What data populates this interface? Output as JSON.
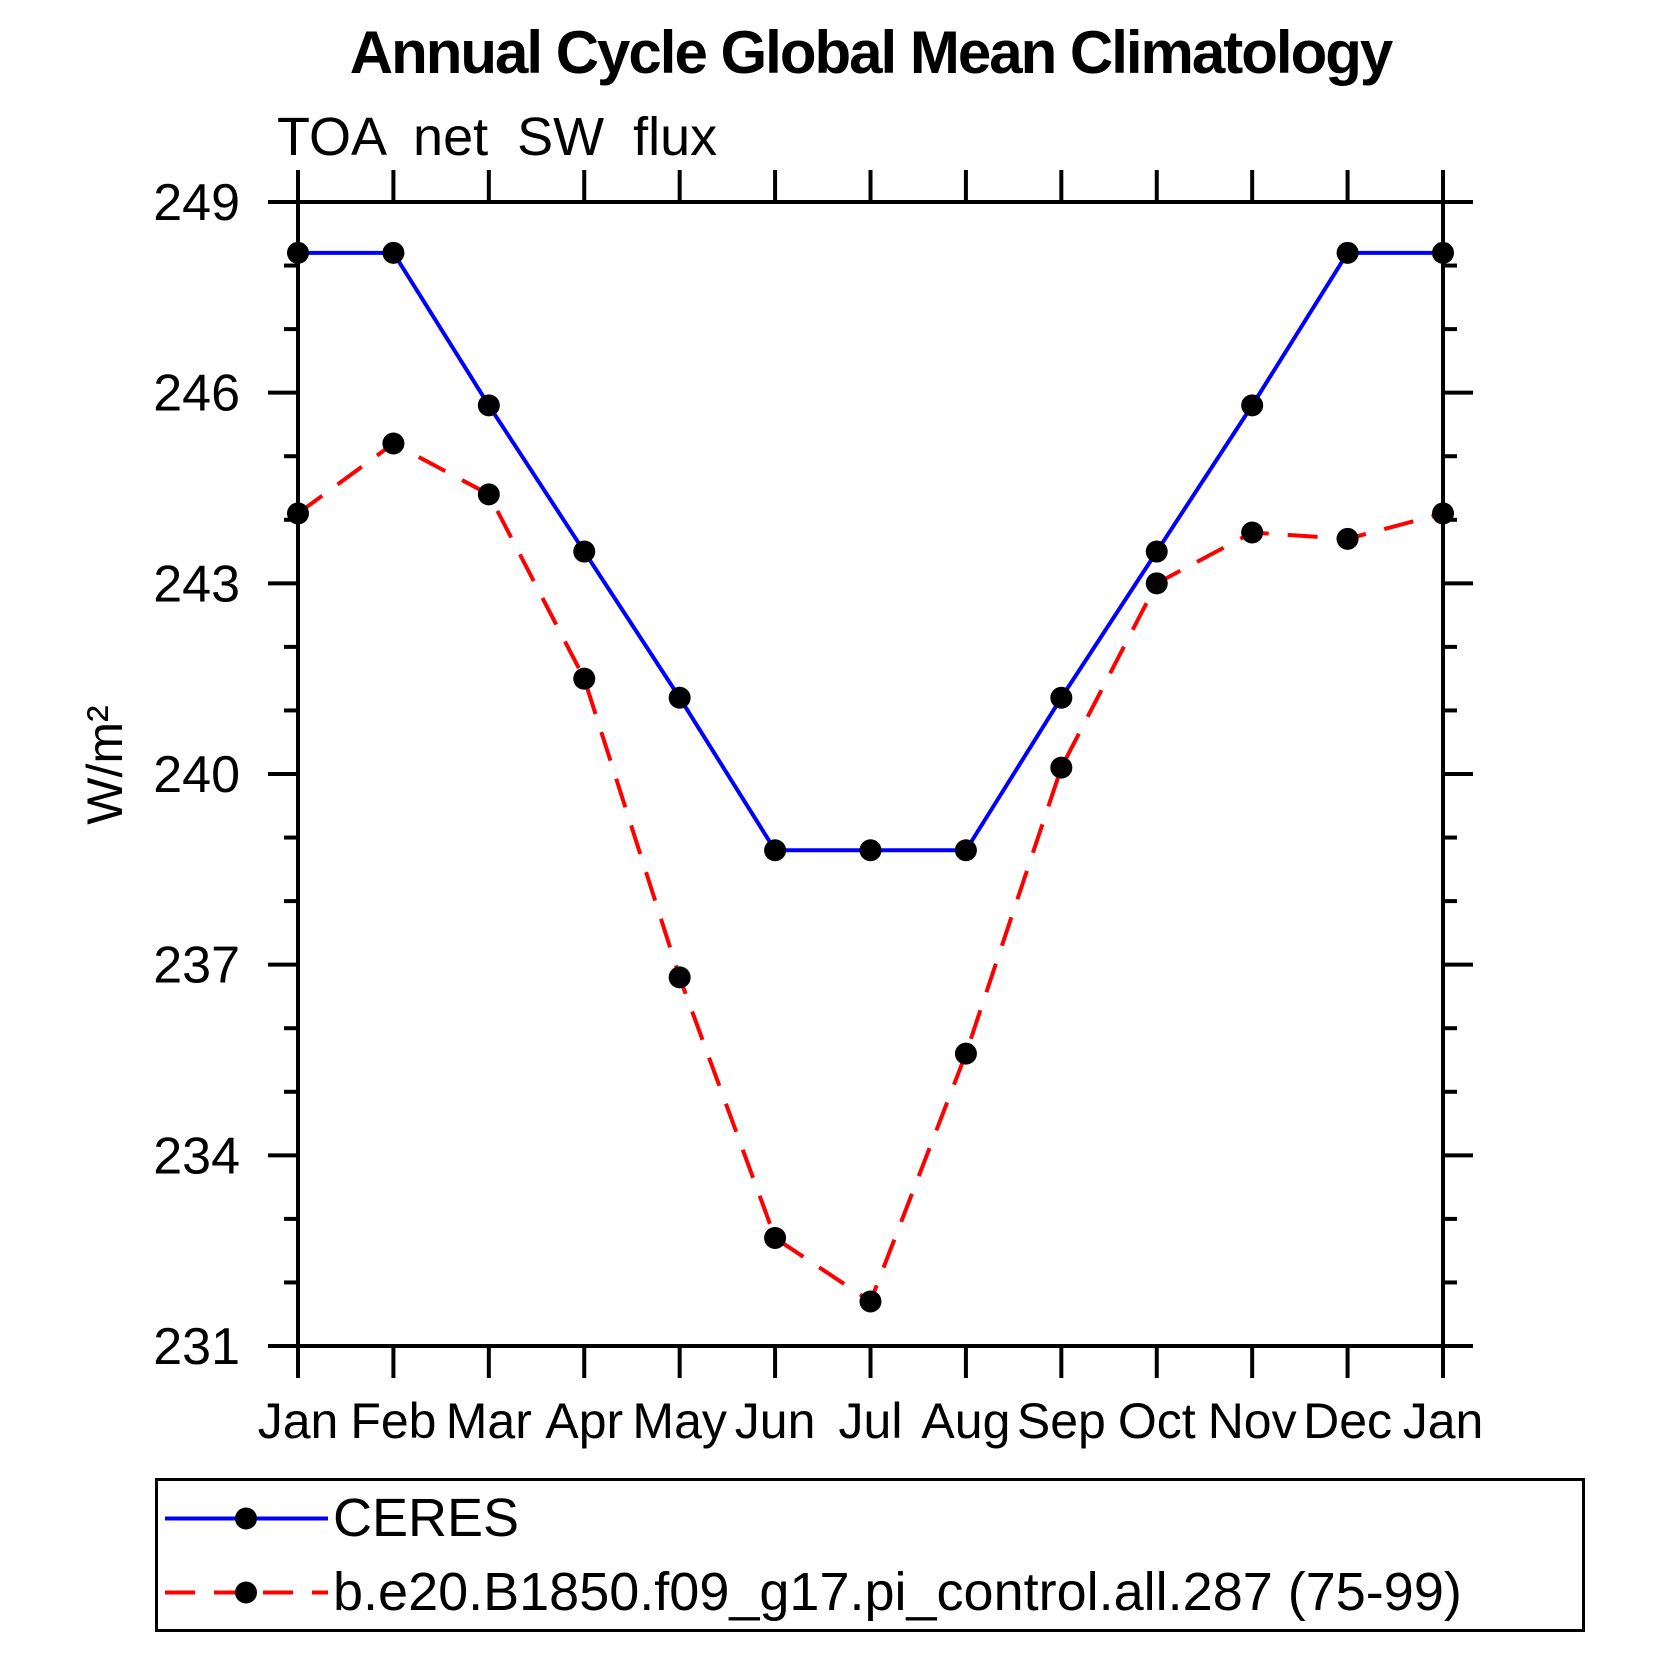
{
  "header": {
    "title": "Annual Cycle Global Mean Climatology",
    "subtitle": "TOA net SW flux"
  },
  "y_axis": {
    "label": "W/m²",
    "tick_labels": [
      "249",
      "246",
      "243",
      "240",
      "237",
      "234",
      "231"
    ]
  },
  "x_axis": {
    "tick_labels": [
      "Jan",
      "Feb",
      "Mar",
      "Apr",
      "May",
      "Jun",
      "Jul",
      "Aug",
      "Sep",
      "Oct",
      "Nov",
      "Dec",
      "Jan"
    ]
  },
  "colors": {
    "ceres_line": "#0000ff",
    "model_line": "#ff0000",
    "marker": "#000000",
    "axis": "#000000"
  },
  "chart_data": {
    "type": "line",
    "title": "Annual Cycle Global Mean Climatology",
    "subtitle": "TOA net SW flux",
    "ylabel": "W/m²",
    "x_categories": [
      "Jan",
      "Feb",
      "Mar",
      "Apr",
      "May",
      "Jun",
      "Jul",
      "Aug",
      "Sep",
      "Oct",
      "Nov",
      "Dec",
      "Jan"
    ],
    "series": [
      {
        "name": "CERES",
        "color": "#0000ff",
        "line_style": "solid",
        "marker": "filled-circle",
        "marker_color": "#000000",
        "values": [
          248.2,
          248.2,
          245.8,
          243.5,
          241.2,
          238.8,
          238.8,
          238.8,
          241.2,
          243.5,
          245.8,
          248.2,
          248.2
        ]
      },
      {
        "name": "b.e20.B1850.f09_g17.pi_control.all.287 (75-99)",
        "color": "#ff0000",
        "line_style": "dashed",
        "marker": "filled-circle",
        "marker_color": "#000000",
        "values": [
          244.1,
          245.2,
          244.4,
          241.5,
          236.8,
          232.7,
          231.7,
          235.6,
          240.1,
          243.0,
          243.8,
          243.7,
          244.1
        ]
      }
    ],
    "ylim": [
      231,
      249
    ],
    "y_major_ticks": [
      249,
      246,
      243,
      240,
      237,
      234,
      231
    ],
    "y_minor_tick_interval": 1,
    "grid": false,
    "legend_position": "bottom"
  }
}
